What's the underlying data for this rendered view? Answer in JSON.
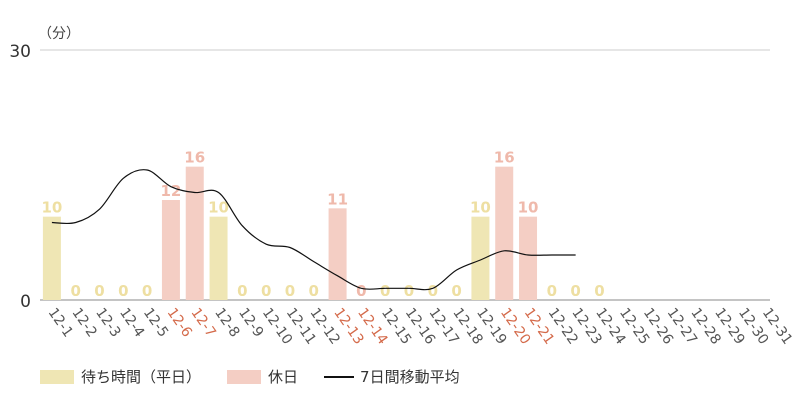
{
  "chart_data": {
    "type": "bar",
    "unit_label": "（分）",
    "ylim": [
      0,
      30
    ],
    "yticks": [
      0,
      30
    ],
    "categories": [
      "12-1",
      "12-2",
      "12-3",
      "12-4",
      "12-5",
      "12-6",
      "12-7",
      "12-8",
      "12-9",
      "12-10",
      "12-11",
      "12-12",
      "12-13",
      "12-14",
      "12-15",
      "12-16",
      "12-17",
      "12-18",
      "12-19",
      "12-20",
      "12-21",
      "12-22",
      "12-23",
      "12-24",
      "12-25",
      "12-26",
      "12-27",
      "12-28",
      "12-29",
      "12-30",
      "12-31"
    ],
    "values": [
      10,
      0,
      0,
      0,
      0,
      12,
      16,
      10,
      0,
      0,
      0,
      0,
      11,
      0,
      0,
      0,
      0,
      0,
      10,
      16,
      10,
      0,
      0,
      0,
      null,
      null,
      null,
      null,
      null,
      null,
      null
    ],
    "holiday": [
      false,
      false,
      false,
      false,
      false,
      true,
      true,
      false,
      false,
      false,
      false,
      false,
      true,
      true,
      false,
      false,
      false,
      false,
      false,
      true,
      true,
      false,
      false,
      false,
      false,
      false,
      false,
      false,
      false,
      false,
      false
    ],
    "moving_average": [
      9.3,
      9.3,
      10.9,
      14.6,
      15.6,
      13.6,
      12.9,
      12.9,
      8.9,
      6.7,
      6.3,
      4.6,
      2.9,
      1.4,
      1.4,
      1.4,
      1.4,
      3.6,
      4.8,
      5.9,
      5.4,
      5.4,
      5.4,
      null,
      null,
      null,
      null,
      null,
      null,
      null,
      null
    ],
    "legend": {
      "weekday": "待ち時間（平日）",
      "holiday": "休日",
      "moving_avg": "7日間移動平均"
    },
    "colors": {
      "weekday_bar": "#efe6b4",
      "holiday_bar": "#f4cec4",
      "weekday_label": "#eedfa2",
      "holiday_label": "#efb9ab",
      "holiday_tick": "#d46a4a",
      "weekday_tick": "#555555",
      "moving_avg_line": "#111111",
      "gridline": "#cccccc"
    },
    "grid": true
  }
}
